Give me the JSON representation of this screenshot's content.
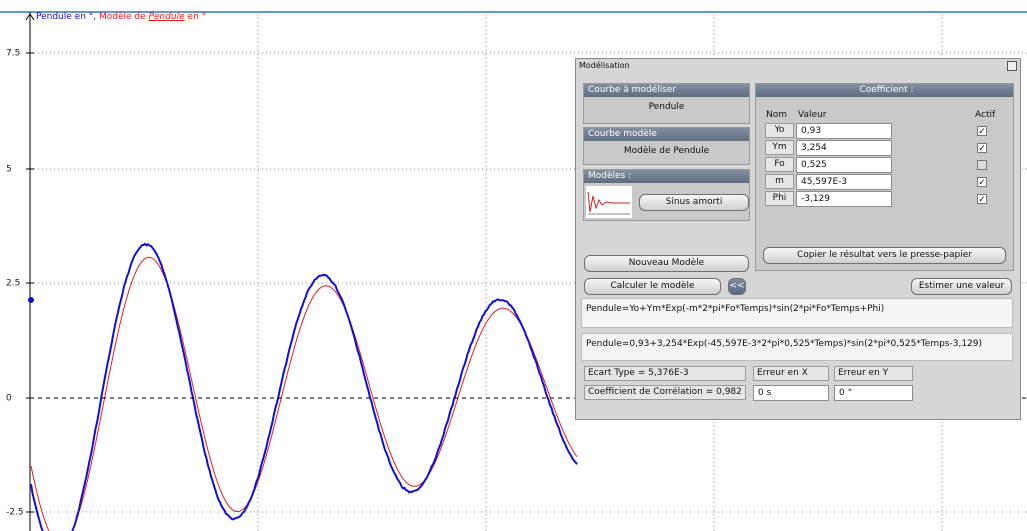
{
  "graph": {
    "legend": {
      "first": "Pendule en °",
      "separator": ", ",
      "second_prefix": "Modèle de",
      "second_name": "Pendule",
      "second_suffix": "en °"
    },
    "yticks": [
      "7.5",
      "5",
      "2.5",
      "0",
      "-2.5"
    ]
  },
  "dialog": {
    "title": "Modélisation",
    "courbe_a_modeliser": {
      "header": "Courbe à modéliser",
      "value": "Pendule"
    },
    "courbe_modele": {
      "header": "Courbe modèle",
      "value": "Modèle de Pendule"
    },
    "modeles": {
      "header": "Modèles :",
      "button": "Sinus amorti"
    },
    "coefficient": {
      "header": "Coefficient :",
      "columns": [
        "Nom",
        "Valeur",
        "Actif"
      ],
      "rows": [
        {
          "nom": "Yo",
          "valeur": "0,93",
          "actif": true
        },
        {
          "nom": "Ym",
          "valeur": "3,254",
          "actif": true
        },
        {
          "nom": "Fo",
          "valeur": "0,525",
          "actif": false
        },
        {
          "nom": "m",
          "valeur": "45,597E-3",
          "actif": true
        },
        {
          "nom": "Phi",
          "valeur": "-3,129",
          "actif": true
        }
      ],
      "copy_button": "Copier le résultat vers le presse-papier"
    },
    "nouveau_modele": "Nouveau Modèle",
    "calculer": "Calculer le modèle",
    "collapse": "<<",
    "estimer": "Estimer une valeur",
    "formula": "Pendule=Yo+Ym*Exp(-m*2*pi*Fo*Temps)*sin(2*pi*Fo*Temps+Phi)",
    "formula_result": "Pendule=0,93+3,254*Exp(-45,597E-3*2*pi*0,525*Temps)*sin(2*pi*0,525*Temps-3,129)",
    "ecart_type": "Ecart Type = 5,376E-3",
    "correlation": "Coefficient de Corrélation = 0,982",
    "erreur_x": {
      "label": "Erreur en X",
      "value": "0 s"
    },
    "erreur_y": {
      "label": "Erreur en Y",
      "value": "0 °"
    }
  }
}
